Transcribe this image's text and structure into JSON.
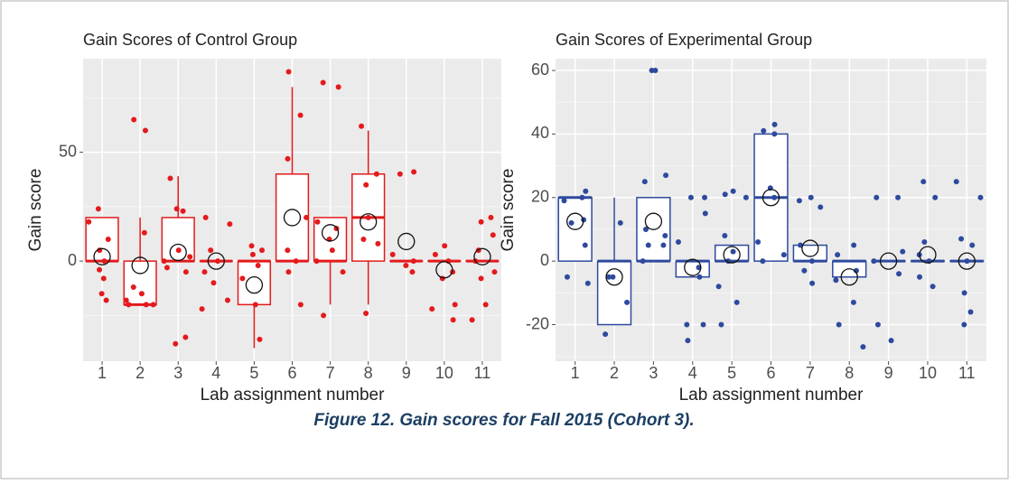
{
  "caption": "Figure 12. Gain scores for Fall 2015 (Cohort 3).",
  "chart_data": [
    {
      "type": "box",
      "title": "Gain Scores of Control Group",
      "x_label": "Lab assignment number",
      "y_label": "Gain score",
      "color": "#e41a1c",
      "grid": true,
      "categories": [
        "1",
        "2",
        "3",
        "4",
        "5",
        "6",
        "7",
        "8",
        "9",
        "10",
        "11"
      ],
      "ylim": [
        -46,
        93
      ],
      "yticks": [
        0,
        50
      ],
      "q1": [
        0,
        -20,
        0,
        0,
        -20,
        0,
        0,
        0,
        0,
        0,
        0
      ],
      "median": [
        0,
        -20,
        0,
        0,
        0,
        0,
        0,
        20,
        0,
        0,
        0
      ],
      "q3": [
        20,
        0,
        20,
        0,
        0,
        40,
        20,
        40,
        0,
        0,
        0
      ],
      "whisker_low": [
        0,
        -20,
        0,
        0,
        -40,
        0,
        -20,
        -20,
        0,
        0,
        0
      ],
      "whisker_high": [
        20,
        20,
        39,
        0,
        0,
        80,
        20,
        60,
        0,
        0,
        0
      ],
      "mean": [
        2,
        -2,
        4,
        0,
        -11,
        20,
        13,
        18,
        9,
        -4,
        2
      ],
      "points": [
        [
          24,
          18,
          10,
          5,
          0,
          -4,
          -8,
          -15,
          -18
        ],
        [
          65,
          60,
          13,
          -12,
          -15,
          -18,
          -20,
          -20,
          -20
        ],
        [
          38,
          23,
          24,
          5,
          2,
          0,
          -5,
          -3,
          -35,
          -38
        ],
        [
          20,
          17,
          5,
          0,
          -5,
          -10,
          -18,
          -22
        ],
        [
          7,
          5,
          3,
          -2,
          -8,
          -20,
          -36
        ],
        [
          87,
          67,
          47,
          20,
          5,
          0,
          -5,
          -20
        ],
        [
          82,
          80,
          18,
          15,
          10,
          5,
          0,
          -5,
          -25
        ],
        [
          62,
          40,
          35,
          20,
          10,
          8,
          -24
        ],
        [
          41,
          40,
          3,
          0,
          -2,
          -5
        ],
        [
          7,
          3,
          0,
          -5,
          -8,
          -20,
          -22,
          -27
        ],
        [
          20,
          18,
          12,
          5,
          0,
          -5,
          -8,
          -20,
          -27
        ]
      ]
    },
    {
      "type": "box",
      "title": "Gain Scores of Experimental Group",
      "x_label": "Lab assignment number",
      "y_label": "Gain score",
      "color": "#2e4a9e",
      "grid": true,
      "categories": [
        "1",
        "2",
        "3",
        "4",
        "5",
        "6",
        "7",
        "8",
        "9",
        "10",
        "11"
      ],
      "ylim": [
        -31.5,
        63.7
      ],
      "yticks": [
        -20,
        0,
        20,
        40,
        60
      ],
      "q1": [
        0,
        -20,
        0,
        -5,
        0,
        0,
        0,
        -5,
        0,
        0,
        0
      ],
      "median": [
        20,
        0,
        0,
        0,
        0,
        20,
        0,
        0,
        0,
        0,
        0
      ],
      "q3": [
        20,
        0,
        20,
        0,
        5,
        40,
        5,
        0,
        0,
        0,
        0
      ],
      "whisker_low": [
        0,
        -20,
        0,
        -5,
        0,
        0,
        0,
        -5,
        0,
        0,
        0
      ],
      "whisker_high": [
        20,
        20,
        20,
        0,
        5,
        40,
        5,
        0,
        0,
        0,
        0
      ],
      "mean": [
        12.5,
        -5,
        12.5,
        -2,
        2,
        20,
        4,
        -5,
        0,
        2,
        0
      ],
      "points": [
        [
          22,
          20,
          19,
          13,
          12,
          5,
          -5,
          -7
        ],
        [
          12,
          -5,
          -5,
          -13,
          -23
        ],
        [
          60,
          60,
          27,
          25,
          10,
          8,
          5,
          5,
          0
        ],
        [
          20,
          20,
          15,
          6,
          -2,
          -5,
          -20,
          -20,
          -25
        ],
        [
          22,
          21,
          20,
          8,
          3,
          0,
          -8,
          -13,
          -20
        ],
        [
          43,
          41,
          40,
          23,
          20,
          6,
          2,
          0
        ],
        [
          20,
          19,
          17,
          5,
          0,
          -3,
          -7
        ],
        [
          5,
          2,
          -3,
          -6,
          -13,
          -20,
          -27
        ],
        [
          20,
          20,
          3,
          0,
          -4,
          -20,
          -25
        ],
        [
          25,
          20,
          6,
          2,
          0,
          -5,
          -8
        ],
        [
          25,
          20,
          7,
          5,
          0,
          -10,
          -16,
          -20
        ]
      ]
    }
  ]
}
